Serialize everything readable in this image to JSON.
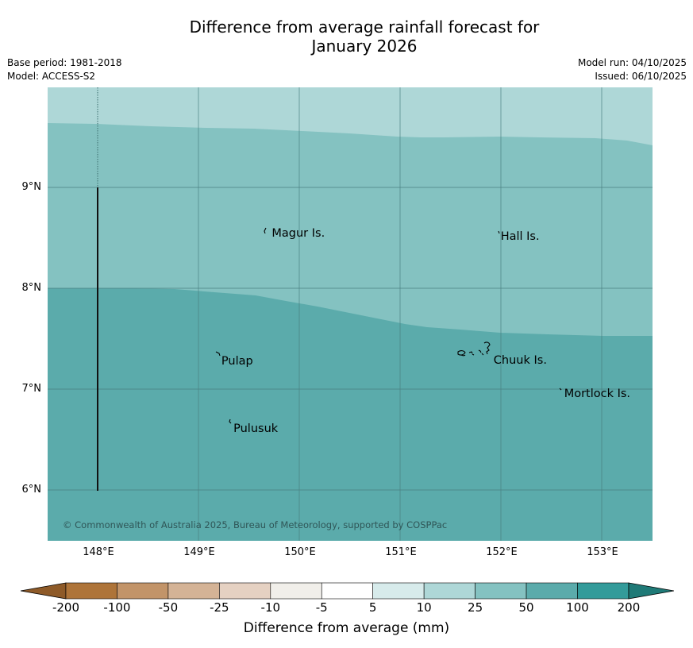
{
  "title_line1": "Difference from average rainfall forecast for",
  "title_line2": "January 2026",
  "meta": {
    "base_period": "Base period: 1981-2018",
    "model": "Model: ACCESS-S2",
    "model_run": "Model run: 04/10/2025",
    "issued": "Issued: 06/10/2025"
  },
  "map": {
    "lon_range": [
      147.5,
      153.5
    ],
    "lat_range": [
      5.5,
      10.0
    ],
    "lat_labels": [
      "9°N",
      "8°N",
      "7°N",
      "6°N"
    ],
    "lon_labels": [
      "148°E",
      "149°E",
      "150°E",
      "151°E",
      "152°E",
      "153°E"
    ],
    "places": [
      {
        "name": "Magur Is.",
        "lon": 149.7,
        "lat": 8.55
      },
      {
        "name": "Hall Is.",
        "lon": 151.97,
        "lat": 8.52
      },
      {
        "name": "Pulap",
        "lon": 149.2,
        "lat": 7.28
      },
      {
        "name": "Chuuk Is.",
        "lon": 151.9,
        "lat": 7.29
      },
      {
        "name": "Mortlock Is.",
        "lon": 152.6,
        "lat": 6.96
      },
      {
        "name": "Pulusuk",
        "lon": 149.32,
        "lat": 6.61
      }
    ],
    "zones": [
      {
        "category": "10 to 25 mm",
        "color": "#aed7d7"
      },
      {
        "category": "25 to 50 mm",
        "color": "#84c2c1"
      },
      {
        "category": "50 to 100 mm",
        "color": "#5babab"
      }
    ],
    "copyright": "© Commonwealth of Australia 2025, Bureau of Meteorology, supported by COSPPac"
  },
  "colorbar": {
    "labels": [
      "-200",
      "-100",
      "-50",
      "-25",
      "-10",
      "-5",
      "5",
      "10",
      "25",
      "50",
      "100",
      "200"
    ],
    "colors": [
      "#ae7439",
      "#c29469",
      "#d4b396",
      "#e5d1c2",
      "#f1efea",
      "#ffffff",
      "#d7ebeb",
      "#aed7d7",
      "#84c2c1",
      "#5babab",
      "#339b9a"
    ],
    "under_color": "#8e5a28",
    "over_color": "#1f7a77",
    "title": "Difference from average (mm)"
  }
}
